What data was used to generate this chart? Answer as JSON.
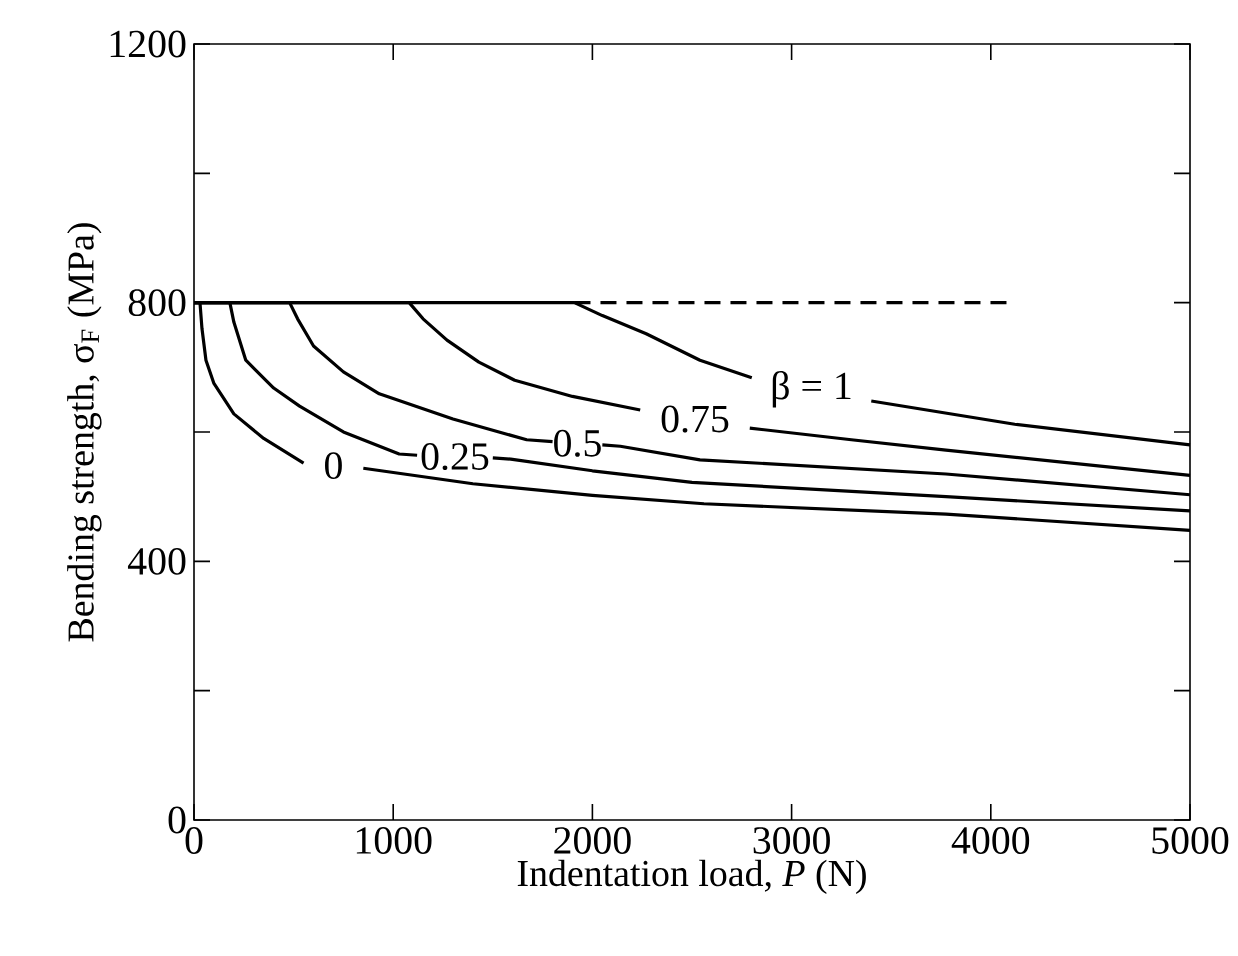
{
  "chart_data": {
    "type": "line",
    "xlabel": "Indentation load, *P* (N)",
    "ylabel": "Bending strength, σ$_{F}$ (MPa)",
    "xlim": [
      0,
      5000
    ],
    "ylim": [
      0,
      1200
    ],
    "xticks": [
      0,
      1000,
      2000,
      3000,
      4000,
      5000
    ],
    "yticks": [
      0,
      {
        "value": 200,
        "label": null
      },
      400,
      {
        "value": 600,
        "label": null
      },
      800,
      {
        "value": 1000,
        "label": null
      },
      1200
    ],
    "grid": false,
    "legend": false,
    "line_style": "solid",
    "series": [
      {
        "name": "0",
        "color": "#000000",
        "x": [
          0,
          30,
          40,
          60,
          100,
          200,
          350,
          550,
          850,
          1400,
          2000,
          2560,
          3775,
          5000
        ],
        "values": [
          800,
          800,
          760,
          711,
          675,
          628,
          590,
          552,
          544,
          520,
          502,
          489,
          473,
          448
        ]
      },
      {
        "name": "0.25",
        "color": "#000000",
        "x": [
          0,
          180,
          200,
          260,
          400,
          530,
          750,
          1030,
          1120,
          1500,
          1590,
          2000,
          2500,
          3775,
          5000
        ],
        "values": [
          800,
          800,
          770,
          711,
          668,
          640,
          600,
          566,
          564,
          560,
          558,
          540,
          522,
          500,
          478
        ]
      },
      {
        "name": "0.5",
        "color": "#000000",
        "x": [
          0,
          480,
          520,
          600,
          750,
          930,
          1300,
          1670,
          1800,
          2050,
          2140,
          2540,
          3775,
          5000
        ],
        "values": [
          800,
          800,
          775,
          733,
          693,
          659,
          620,
          588,
          585,
          580,
          578,
          557,
          535,
          503
        ]
      },
      {
        "name": "0.75",
        "color": "#000000",
        "x": [
          0,
          1080,
          1150,
          1270,
          1430,
          1610,
          1900,
          2240,
          2790,
          3300,
          3775,
          5000
        ],
        "values": [
          800,
          800,
          775,
          742,
          708,
          680,
          655,
          634,
          606,
          588,
          572,
          533
        ]
      },
      {
        "name": "β = 1",
        "color": "#000000",
        "x": [
          0,
          1910,
          2050,
          2270,
          2540,
          2800,
          3400,
          4120,
          5000
        ],
        "values": [
          800,
          800,
          780,
          752,
          711,
          684,
          648,
          612,
          580
        ]
      },
      {
        "color": "#000000",
        "line_style": "dashed",
        "x": [
          1910,
          4100
        ],
        "values": [
          800,
          800
        ]
      }
    ]
  }
}
